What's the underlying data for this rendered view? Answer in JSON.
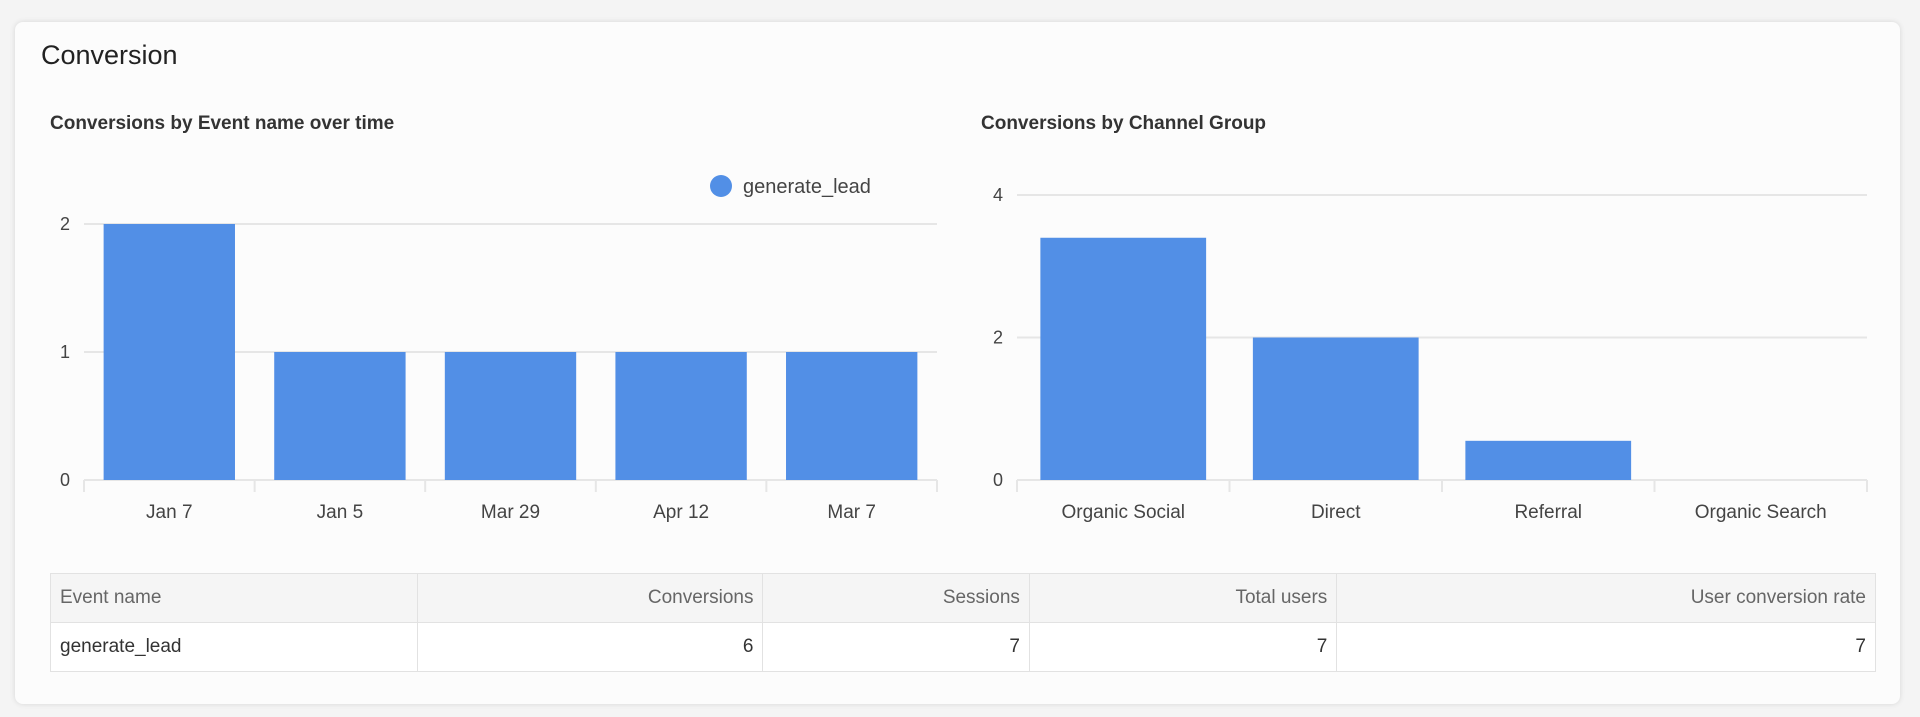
{
  "section_title": "Conversion",
  "colors": {
    "bar": "#528fe6",
    "grid": "#e6e6e6"
  },
  "chart_data": [
    {
      "type": "bar",
      "title": "Conversions by Event name over time",
      "categories": [
        "Jan 7",
        "Jan 5",
        "Mar 29",
        "Apr 12",
        "Mar 7"
      ],
      "series": [
        {
          "name": "generate_lead",
          "values": [
            2,
            1,
            1,
            1,
            1
          ]
        }
      ],
      "yticks": [
        "0",
        "1",
        "2"
      ],
      "ylim": [
        0,
        2
      ],
      "grid": true,
      "legend": "top-right"
    },
    {
      "type": "bar",
      "title": "Conversions by Channel Group",
      "categories": [
        "Organic Social",
        "Direct",
        "Referral",
        "Organic Search"
      ],
      "values": [
        3.4,
        2,
        0.55,
        0
      ],
      "yticks": [
        "0",
        "2",
        "4"
      ],
      "ylim": [
        0,
        4
      ],
      "grid": true
    }
  ],
  "table": {
    "headers": [
      "Event name",
      "Conversions",
      "Sessions",
      "Total users",
      "User conversion rate"
    ],
    "rows": [
      [
        "generate_lead",
        "6",
        "7",
        "7",
        "7"
      ]
    ]
  }
}
